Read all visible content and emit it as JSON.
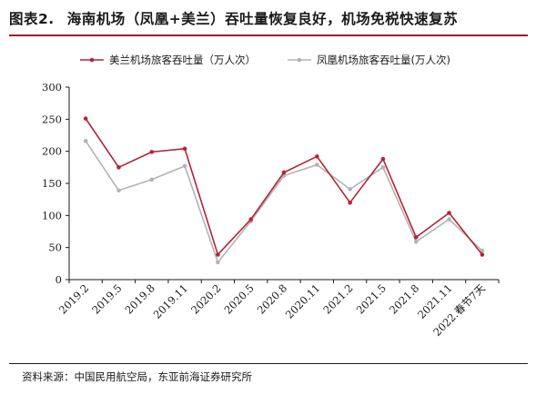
{
  "header": {
    "figure_label": "图表2.",
    "title": "海南机场（凤凰+美兰）吞吐量恢复良好，机场免税快速复苏"
  },
  "footer": {
    "source": "资料来源：中国民用航空局，东亚前海证券研究所"
  },
  "colors": {
    "series_1": "#b5233a",
    "series_2": "#b3b3b3",
    "accent_rule": "#9b1c2c"
  },
  "chart_data": {
    "type": "line",
    "title": "",
    "xlabel": "",
    "ylabel": "",
    "ylim": [
      0,
      300
    ],
    "yticks": [
      0,
      50,
      100,
      150,
      200,
      250,
      300
    ],
    "grid": false,
    "legend_position": "top",
    "categories": [
      "2019.2",
      "2019.5",
      "2019.8",
      "2019.11",
      "2020.2",
      "2020.5",
      "2020.8",
      "2020.11",
      "2021.2",
      "2021.5",
      "2021.8",
      "2021.11",
      "2022.春节7天"
    ],
    "series": [
      {
        "name": "美兰机场旅客吞吐量（万人次）",
        "color": "#b5233a",
        "values": [
          251,
          175,
          199,
          204,
          39,
          94,
          167,
          192,
          120,
          188,
          66,
          104,
          39
        ]
      },
      {
        "name": "凤凰机场旅客吞吐量(万人次)",
        "color": "#b3b3b3",
        "values": [
          216,
          139,
          156,
          177,
          27,
          91,
          162,
          179,
          141,
          175,
          59,
          94,
          45
        ]
      }
    ]
  }
}
